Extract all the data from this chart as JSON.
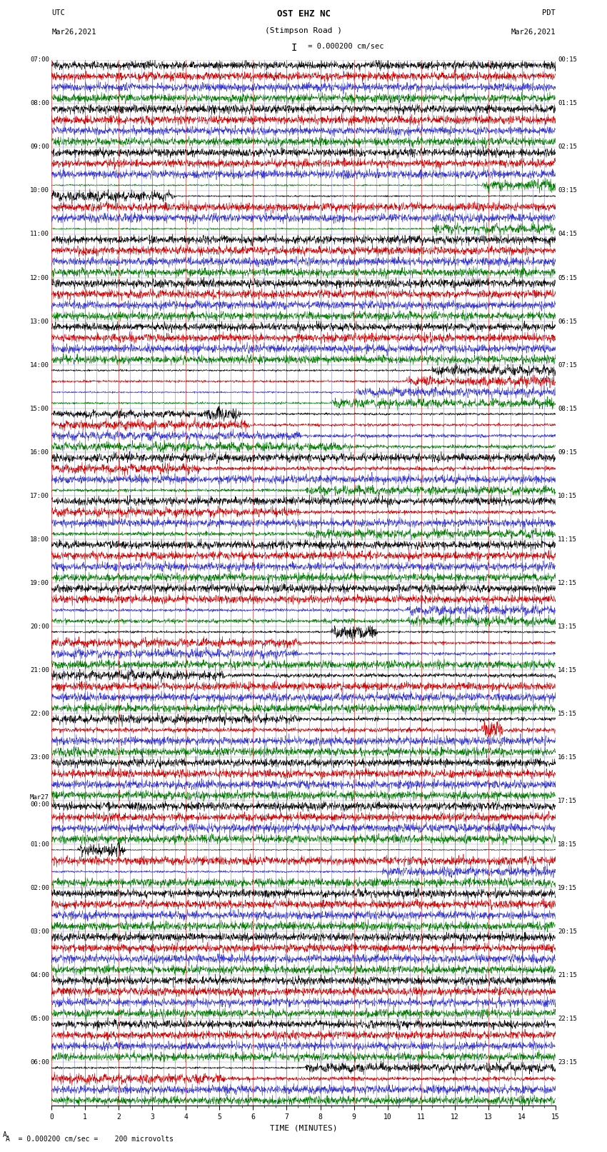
{
  "title_line1": "OST EHZ NC",
  "title_line2": "(Stimpson Road )",
  "title_scale": "I = 0.000200 cm/sec",
  "left_header_line1": "UTC",
  "left_header_line2": "Mar26,2021",
  "right_header_line1": "PDT",
  "right_header_line2": "Mar26,2021",
  "xlabel": "TIME (MINUTES)",
  "bottom_note": "A  = 0.000200 cm/sec =    200 microvolts",
  "xlim": [
    0,
    15
  ],
  "bg_color": "#ffffff",
  "grid_color_major": "#cc0000",
  "grid_color_minor": "#3333cc",
  "trace_colors": [
    "#000000",
    "#cc0000",
    "#3333cc",
    "#007700"
  ],
  "fig_width": 8.5,
  "fig_height": 16.13,
  "left_times": [
    "07:00",
    "08:00",
    "09:00",
    "10:00",
    "11:00",
    "12:00",
    "13:00",
    "14:00",
    "15:00",
    "16:00",
    "17:00",
    "18:00",
    "19:00",
    "20:00",
    "21:00",
    "22:00",
    "23:00",
    "Mar27\n00:00",
    "01:00",
    "02:00",
    "03:00",
    "04:00",
    "05:00",
    "06:00"
  ],
  "right_times": [
    "00:15",
    "01:15",
    "02:15",
    "03:15",
    "04:15",
    "05:15",
    "06:15",
    "07:15",
    "08:15",
    "09:15",
    "10:15",
    "11:15",
    "12:15",
    "13:15",
    "14:15",
    "15:15",
    "16:15",
    "17:15",
    "18:15",
    "19:15",
    "20:15",
    "21:15",
    "22:15",
    "23:15"
  ],
  "n_hours": 24,
  "traces_per_hour": 4,
  "noise_base": [
    0.18,
    0.12,
    0.1,
    0.1
  ]
}
